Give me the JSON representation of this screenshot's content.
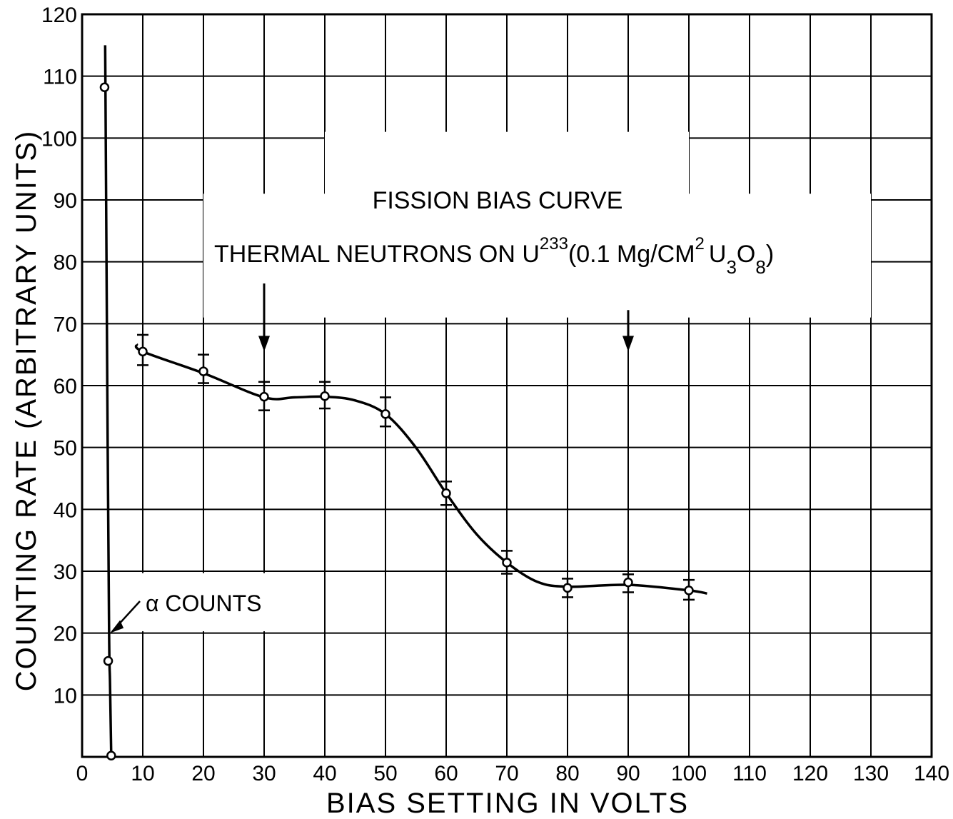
{
  "chart_data": {
    "type": "line",
    "title": "FISSION BIAS CURVE",
    "subtitle": {
      "main": "THERMAL NEUTRONS ON U",
      "isotope": "233",
      "open": "(0.1 Mg/CM",
      "area_exp": "2",
      "compound": "U",
      "sub1": "3",
      "o": "O",
      "sub2": "8",
      "close": ")"
    },
    "xlabel": "BIAS SETTING IN VOLTS",
    "ylabel": "COUNTING RATE (ARBITRARY UNITS)",
    "xlim": [
      0,
      140
    ],
    "ylim": [
      0,
      120
    ],
    "x_ticks": [
      "0",
      "10",
      "20",
      "30",
      "40",
      "50",
      "60",
      "70",
      "80",
      "90",
      "100",
      "110",
      "120",
      "130",
      "140"
    ],
    "y_ticks": [
      "10",
      "20",
      "30",
      "40",
      "50",
      "60",
      "70",
      "80",
      "90",
      "100",
      "110",
      "120"
    ],
    "grid": true,
    "colors": {
      "ink": "#000000",
      "paper": "#ffffff"
    },
    "series": [
      {
        "points": [
          {
            "x": 10,
            "y": 65.5,
            "err": [
              63.3,
              68.2
            ]
          },
          {
            "x": 20,
            "y": 62.3,
            "err": [
              60.4,
              65.0
            ]
          },
          {
            "x": 30,
            "y": 58.2,
            "err": [
              56.0,
              60.6
            ]
          },
          {
            "x": 40,
            "y": 58.3,
            "err": [
              56.3,
              60.6
            ]
          },
          {
            "x": 50,
            "y": 55.4,
            "err": [
              53.4,
              58.1
            ]
          },
          {
            "x": 60,
            "y": 42.6,
            "err": [
              40.7,
              44.5
            ]
          },
          {
            "x": 70,
            "y": 31.4,
            "err": [
              29.6,
              33.3
            ]
          },
          {
            "x": 80,
            "y": 27.3,
            "err": [
              25.8,
              28.8
            ]
          },
          {
            "x": 90,
            "y": 28.2,
            "err": [
              26.6,
              29.5
            ]
          },
          {
            "x": 100,
            "y": 26.9,
            "err": [
              25.4,
              28.6
            ]
          }
        ],
        "curve": [
          [
            9,
            66.7
          ],
          [
            10,
            65.5
          ],
          [
            20,
            62.0
          ],
          [
            30,
            58.1
          ],
          [
            35,
            58.1
          ],
          [
            40,
            58.2
          ],
          [
            45,
            57.6
          ],
          [
            50,
            55.4
          ],
          [
            55,
            50.0
          ],
          [
            60,
            42.6
          ],
          [
            65,
            36.0
          ],
          [
            70,
            31.4
          ],
          [
            75,
            28.3
          ],
          [
            80,
            27.5
          ],
          [
            90,
            27.8
          ],
          [
            100,
            26.9
          ],
          [
            103,
            26.4
          ]
        ]
      },
      {
        "points": [
          {
            "x": 3.7,
            "y": 108.2
          },
          {
            "x": 4.3,
            "y": 15.5
          },
          {
            "x": 4.8,
            "y": 0.2
          }
        ],
        "curve": [
          [
            3.8,
            115
          ],
          [
            3.85,
            108.2
          ],
          [
            4.15,
            60
          ],
          [
            4.45,
            20
          ],
          [
            4.6,
            12
          ],
          [
            4.8,
            0.2
          ]
        ]
      }
    ],
    "annotations": {
      "alpha_label": "α COUNTS",
      "arrows": [
        {
          "x": 30
        },
        {
          "x": 90
        }
      ]
    }
  }
}
